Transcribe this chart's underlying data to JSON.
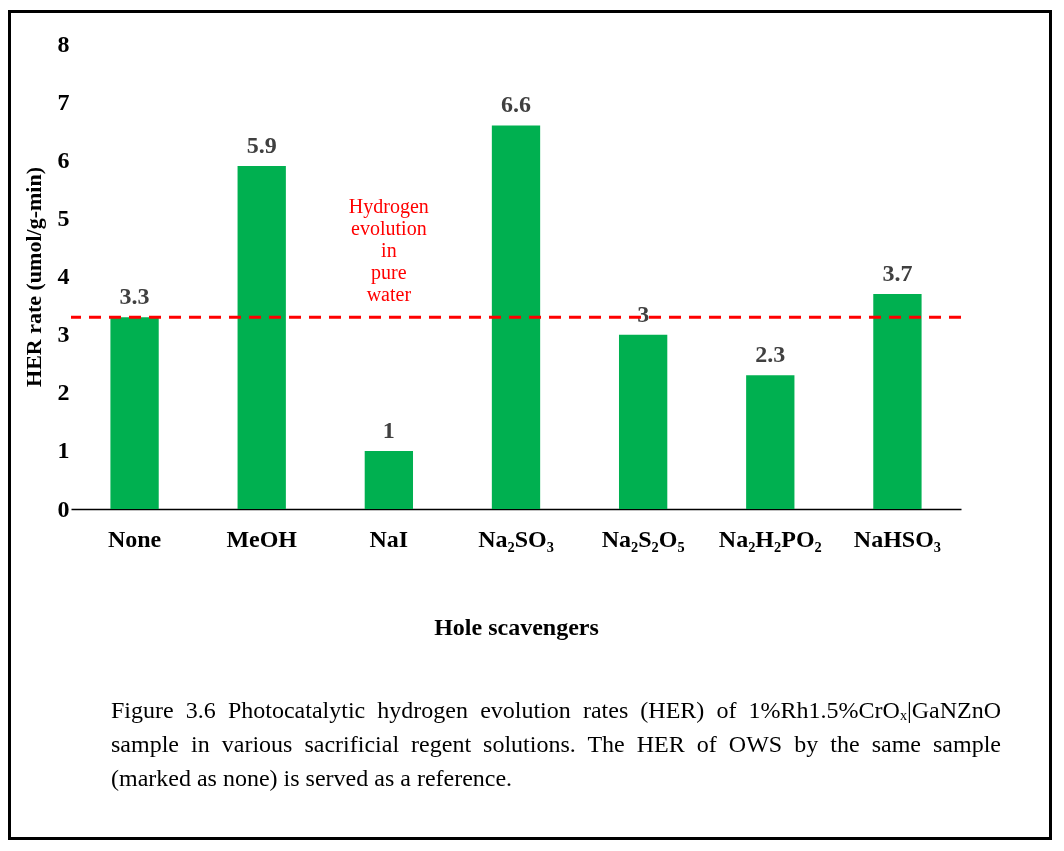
{
  "chart_data": {
    "type": "bar",
    "xlabel": "Hole scavengers",
    "ylabel": "HER rate (umol/g-min)",
    "categories": [
      "None",
      "MeOH",
      "NaI",
      "Na₂SO₃",
      "Na₂S₂O₅",
      "Na₂H₂PO₂",
      "NaHSO₃"
    ],
    "values": [
      3.3,
      5.9,
      1,
      6.6,
      3,
      2.3,
      3.7
    ],
    "color": "#00b050",
    "ylim": [
      0,
      8
    ],
    "yticks": [
      0,
      1,
      2,
      3,
      4,
      5,
      6,
      7,
      8
    ],
    "data_labels": true,
    "ref_lines": [
      {
        "axis": "y",
        "value": 3.3,
        "label": "Hydrogen evolution in pure water",
        "color": "#ff0000",
        "line_style": "dashed"
      }
    ],
    "annotations": [
      "Figure 3.6 Photocatalytic hydrogen evolution rates (HER) of 1%Rh1.5%CrOₓ|GaNZnO sample in various sacrificial regent solutions. The HER of OWS by the same sample (marked as none) is served as a reference."
    ]
  }
}
